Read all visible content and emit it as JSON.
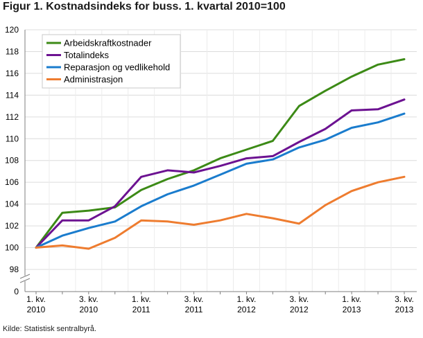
{
  "title": "Figur 1. Kostnadsindeks for buss. 1. kvartal 2010=100",
  "source": "Kilde: Statistisk sentralbyrå.",
  "chart_data": {
    "type": "line",
    "title": "Figur 1. Kostnadsindeks for buss. 1. kvartal 2010=100",
    "xlabel": "",
    "ylabel": "",
    "ylim": [
      98,
      120
    ],
    "yticks": [
      98,
      100,
      102,
      104,
      106,
      108,
      110,
      112,
      114,
      116,
      118,
      120
    ],
    "y_baseline_label": "0",
    "y_axis_break": true,
    "grid": true,
    "legend_position": "top-left",
    "x": [
      "1. kv. 2010",
      "2. kv. 2010",
      "3. kv. 2010",
      "4. kv. 2010",
      "1. kv. 2011",
      "2. kv. 2011",
      "3. kv. 2011",
      "4. kv. 2011",
      "1. kv. 2012",
      "2. kv. 2012",
      "3. kv. 2012",
      "4. kv. 2012",
      "1. kv. 2013",
      "2. kv. 2013",
      "3. kv. 2013"
    ],
    "x_tick_labels": [
      {
        "index": 0,
        "line1": "1. kv.",
        "line2": "2010"
      },
      {
        "index": 2,
        "line1": "3. kv.",
        "line2": "2010"
      },
      {
        "index": 4,
        "line1": "1. kv.",
        "line2": "2011"
      },
      {
        "index": 6,
        "line1": "3. kv.",
        "line2": "2011"
      },
      {
        "index": 8,
        "line1": "1. kv.",
        "line2": "2012"
      },
      {
        "index": 10,
        "line1": "3. kv.",
        "line2": "2012"
      },
      {
        "index": 12,
        "line1": "1. kv.",
        "line2": "2013"
      },
      {
        "index": 14,
        "line1": "3. kv.",
        "line2": "2013"
      }
    ],
    "series": [
      {
        "name": "Arbeidskraftkostnader",
        "color": "#3c8a16",
        "values": [
          100,
          103.2,
          103.4,
          103.7,
          105.3,
          106.3,
          107.1,
          108.2,
          109.0,
          109.8,
          113.0,
          114.4,
          115.7,
          116.8,
          117.3
        ]
      },
      {
        "name": "Totalindeks",
        "color": "#6c1291",
        "values": [
          100,
          102.5,
          102.5,
          103.8,
          106.5,
          107.1,
          106.9,
          107.5,
          108.2,
          108.4,
          109.7,
          110.9,
          112.6,
          112.7,
          113.6
        ]
      },
      {
        "name": "Reparasjon og vedlikehold",
        "color": "#1a7ccd",
        "values": [
          100,
          101.1,
          101.8,
          102.4,
          103.8,
          104.9,
          105.7,
          106.7,
          107.7,
          108.1,
          109.2,
          109.9,
          111.0,
          111.5,
          112.3
        ]
      },
      {
        "name": "Administrasjon",
        "color": "#ee7c2f",
        "values": [
          100,
          100.2,
          99.9,
          100.9,
          102.5,
          102.4,
          102.1,
          102.5,
          103.1,
          102.7,
          102.2,
          103.9,
          105.2,
          106.0,
          106.5
        ]
      }
    ]
  }
}
